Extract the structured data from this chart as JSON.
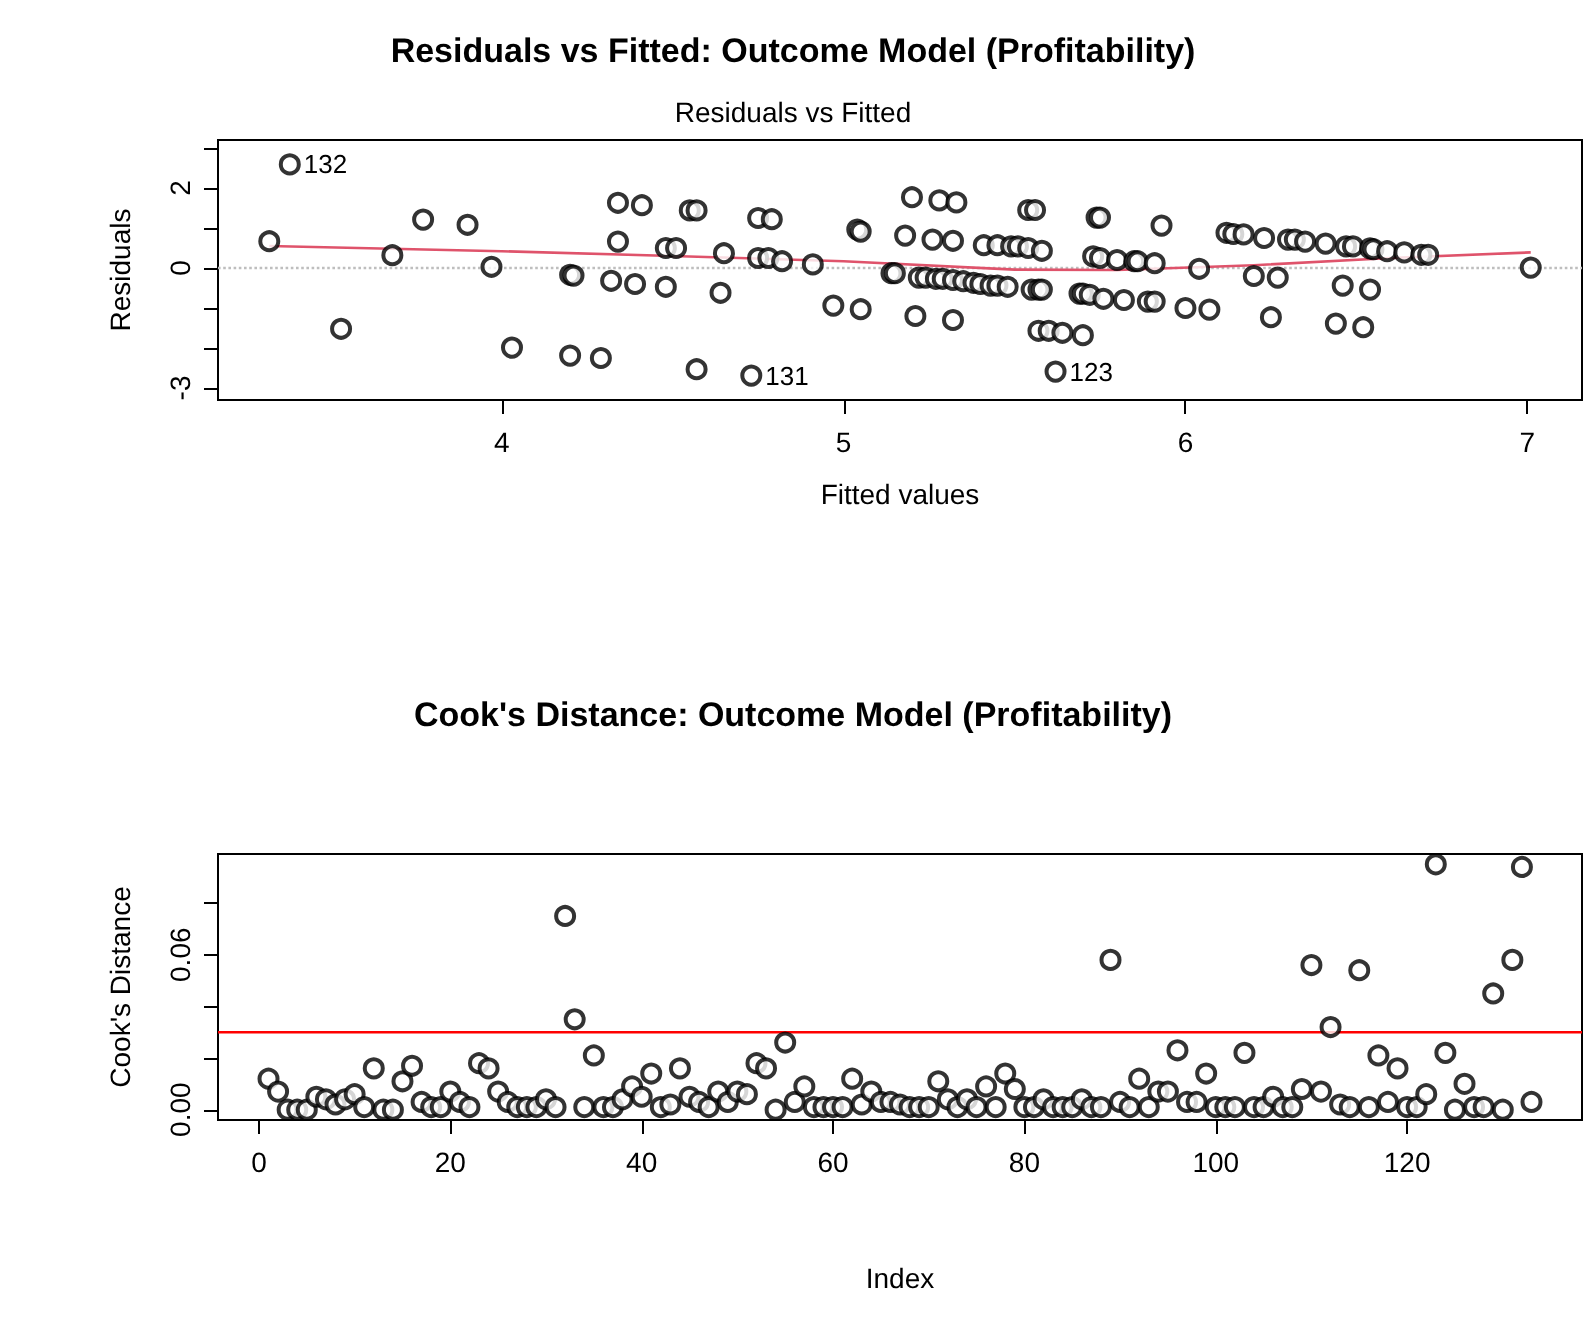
{
  "chart_data": [
    {
      "type": "scatter",
      "title": "Residuals vs Fitted: Outcome Model (Profitability)",
      "subtitle": "Residuals vs Fitted",
      "xlabel": "Fitted values",
      "ylabel": "Residuals",
      "marker": "circle",
      "grid": false,
      "xlim": [
        3.17,
        7.16
      ],
      "xticks": [
        4,
        5,
        6,
        7
      ],
      "ylim": [
        -3.3,
        3.2
      ],
      "yticks": [
        -3,
        {
          "value": -2,
          "label": null
        },
        {
          "value": -1,
          "label": null
        },
        0,
        {
          "value": 1,
          "label": null
        },
        2,
        {
          "value": 3,
          "label": null
        }
      ],
      "series": [
        {
          "color": "#000000",
          "x": [
            3.32,
            3.38,
            3.53,
            3.68,
            3.77,
            3.9,
            3.97,
            4.03,
            4.2,
            4.2,
            4.21,
            4.29,
            4.32,
            4.34,
            4.34,
            4.39,
            4.41,
            4.48,
            4.48,
            4.51,
            4.55,
            4.57,
            4.57,
            4.64,
            4.65,
            4.73,
            4.75,
            4.79,
            4.75,
            4.78,
            4.82,
            4.91,
            4.97,
            5.05,
            5.04,
            5.05,
            5.14,
            5.15,
            5.18,
            5.2,
            5.21,
            5.22,
            5.24,
            5.26,
            5.27,
            5.28,
            5.29,
            5.32,
            5.33,
            5.32,
            5.32,
            5.35,
            5.38,
            5.4,
            5.41,
            5.43,
            5.45,
            5.45,
            5.48,
            5.49,
            5.51,
            5.54,
            5.54,
            5.55,
            5.56,
            5.57,
            5.58,
            5.58,
            5.57,
            5.6,
            5.64,
            5.7,
            5.62,
            5.69,
            5.7,
            5.72,
            5.73,
            5.74,
            5.75,
            5.75,
            5.76,
            5.8,
            5.82,
            5.85,
            5.86,
            5.89,
            5.91,
            5.91,
            5.93,
            6.0,
            6.04,
            6.07,
            6.12,
            6.14,
            6.17,
            6.2,
            6.23,
            6.25,
            6.27,
            6.3,
            6.32,
            6.35,
            6.41,
            6.44,
            6.46,
            6.47,
            6.49,
            6.52,
            6.54,
            6.54,
            6.55,
            6.59,
            6.64,
            6.69,
            6.71,
            7.01
          ],
          "values": [
            0.67,
            2.59,
            -1.52,
            0.32,
            1.21,
            1.08,
            0.03,
            -1.99,
            -2.19,
            -0.17,
            -0.19,
            -2.25,
            -0.32,
            0.66,
            1.63,
            -0.4,
            1.57,
            -0.47,
            0.5,
            0.5,
            1.44,
            1.44,
            -2.53,
            -0.62,
            0.37,
            -2.69,
            1.25,
            1.22,
            0.25,
            0.25,
            0.17,
            0.09,
            -0.94,
            -1.03,
            0.96,
            0.91,
            -0.13,
            -0.13,
            0.81,
            1.77,
            -1.2,
            -0.24,
            -0.24,
            0.71,
            -0.27,
            1.69,
            -0.27,
            0.68,
            1.64,
            -0.3,
            -1.3,
            -0.33,
            -0.37,
            -0.4,
            0.57,
            -0.44,
            0.57,
            -0.44,
            -0.47,
            0.54,
            0.54,
            0.5,
            1.45,
            -0.54,
            1.45,
            -0.54,
            0.43,
            -0.54,
            -1.57,
            -1.57,
            -1.62,
            -1.68,
            -2.59,
            -0.64,
            -0.64,
            -0.67,
            0.29,
            1.26,
            1.26,
            0.25,
            -0.77,
            0.2,
            -0.8,
            0.17,
            0.17,
            -0.84,
            0.12,
            -0.84,
            1.06,
            -1.0,
            -0.02,
            -1.04,
            0.88,
            0.85,
            0.84,
            -0.2,
            0.75,
            -1.23,
            -0.24,
            0.71,
            0.71,
            0.66,
            0.61,
            -1.39,
            -0.44,
            0.54,
            0.54,
            -1.48,
            -0.54,
            0.49,
            0.47,
            0.42,
            0.39,
            0.33,
            0.33,
            0.01
          ]
        },
        {
          "type": "line",
          "marker": "none",
          "color": "#df536b",
          "x": [
            3.32,
            4.0,
            4.5,
            5.0,
            5.5,
            5.8,
            6.2,
            6.6,
            7.01
          ],
          "values": [
            0.55,
            0.42,
            0.3,
            0.17,
            -0.04,
            -0.05,
            0.07,
            0.25,
            0.39
          ]
        }
      ],
      "ref_lines": [
        {
          "axis": "y",
          "value": 0,
          "color": "#bebebe",
          "line_style": "dotted"
        }
      ],
      "annotations": [
        {
          "text": "132",
          "x": 3.38,
          "y": 2.59
        },
        {
          "text": "131",
          "x": 4.73,
          "y": -2.69
        },
        {
          "text": "123",
          "x": 5.62,
          "y": -2.59
        }
      ]
    },
    {
      "type": "scatter",
      "title": "Cook's Distance: Outcome Model (Profitability)",
      "xlabel": "Index",
      "ylabel": "Cook's Distance",
      "marker": "circle",
      "grid": false,
      "xlim": [
        -4.28,
        138.28
      ],
      "xticks": [
        0,
        20,
        40,
        60,
        80,
        100,
        120
      ],
      "ylim": [
        -0.004,
        0.099
      ],
      "yticks": [
        {
          "value": 0,
          "label": "0.00"
        },
        {
          "value": 0.02,
          "label": null
        },
        {
          "value": 0.04,
          "label": null
        },
        {
          "value": 0.06,
          "label": "0.06"
        },
        {
          "value": 0.08,
          "label": null
        }
      ],
      "series": [
        {
          "color": "#000000",
          "x": [
            1,
            2,
            3,
            4,
            5,
            6,
            7,
            8,
            9,
            10,
            11,
            12,
            13,
            14,
            15,
            16,
            17,
            18,
            19,
            20,
            21,
            22,
            23,
            24,
            25,
            26,
            27,
            28,
            29,
            30,
            31,
            32,
            33,
            34,
            35,
            36,
            37,
            38,
            39,
            40,
            41,
            42,
            43,
            44,
            45,
            46,
            47,
            48,
            49,
            50,
            51,
            52,
            53,
            54,
            55,
            56,
            57,
            58,
            59,
            60,
            61,
            62,
            63,
            64,
            65,
            66,
            67,
            68,
            69,
            70,
            71,
            72,
            73,
            74,
            75,
            76,
            77,
            78,
            79,
            80,
            81,
            82,
            83,
            84,
            85,
            86,
            87,
            88,
            89,
            90,
            91,
            92,
            93,
            94,
            95,
            96,
            97,
            98,
            99,
            100,
            101,
            102,
            103,
            104,
            105,
            106,
            107,
            108,
            109,
            110,
            111,
            112,
            113,
            114,
            115,
            116,
            117,
            118,
            119,
            120,
            121,
            122,
            123,
            124,
            125,
            126,
            127,
            128,
            129,
            130,
            131,
            132,
            133
          ],
          "values": [
            0.012,
            0.007,
            0,
            0,
            0,
            0.005,
            0.004,
            0.002,
            0.004,
            0.006,
            0.001,
            0.016,
            0,
            0,
            0.011,
            0.017,
            0.003,
            0.001,
            0.001,
            0.007,
            0.003,
            0.001,
            0.018,
            0.016,
            0.007,
            0.003,
            0.001,
            0.001,
            0.001,
            0.004,
            0.001,
            0.075,
            0.035,
            0.001,
            0.021,
            0.001,
            0.001,
            0.004,
            0.009,
            0.005,
            0.014,
            0.001,
            0.002,
            0.016,
            0.005,
            0.003,
            0.001,
            0.007,
            0.003,
            0.007,
            0.006,
            0.018,
            0.016,
            0,
            0.026,
            0.003,
            0.009,
            0.001,
            0.001,
            0.001,
            0.001,
            0.012,
            0.002,
            0.007,
            0.003,
            0.003,
            0.002,
            0.001,
            0.001,
            0.001,
            0.011,
            0.004,
            0.001,
            0.004,
            0.001,
            0.009,
            0.001,
            0.014,
            0.008,
            0.001,
            0.001,
            0.004,
            0.001,
            0.001,
            0.001,
            0.004,
            0.001,
            0.001,
            0.058,
            0.003,
            0.001,
            0.012,
            0.001,
            0.007,
            0.007,
            0.023,
            0.003,
            0.003,
            0.014,
            0.001,
            0.001,
            0.001,
            0.022,
            0.001,
            0.001,
            0.005,
            0.001,
            0.001,
            0.008,
            0.056,
            0.007,
            0.032,
            0.002,
            0.001,
            0.054,
            0.001,
            0.021,
            0.003,
            0.016,
            0.001,
            0.001,
            0.006,
            0.095,
            0.022,
            0,
            0.01,
            0.001,
            0.001,
            0.045,
            0,
            0.058,
            0.094,
            0.003
          ]
        }
      ],
      "ref_lines": [
        {
          "axis": "y",
          "value": 0.03,
          "color": "#ff0000",
          "line_style": "solid"
        }
      ]
    }
  ]
}
